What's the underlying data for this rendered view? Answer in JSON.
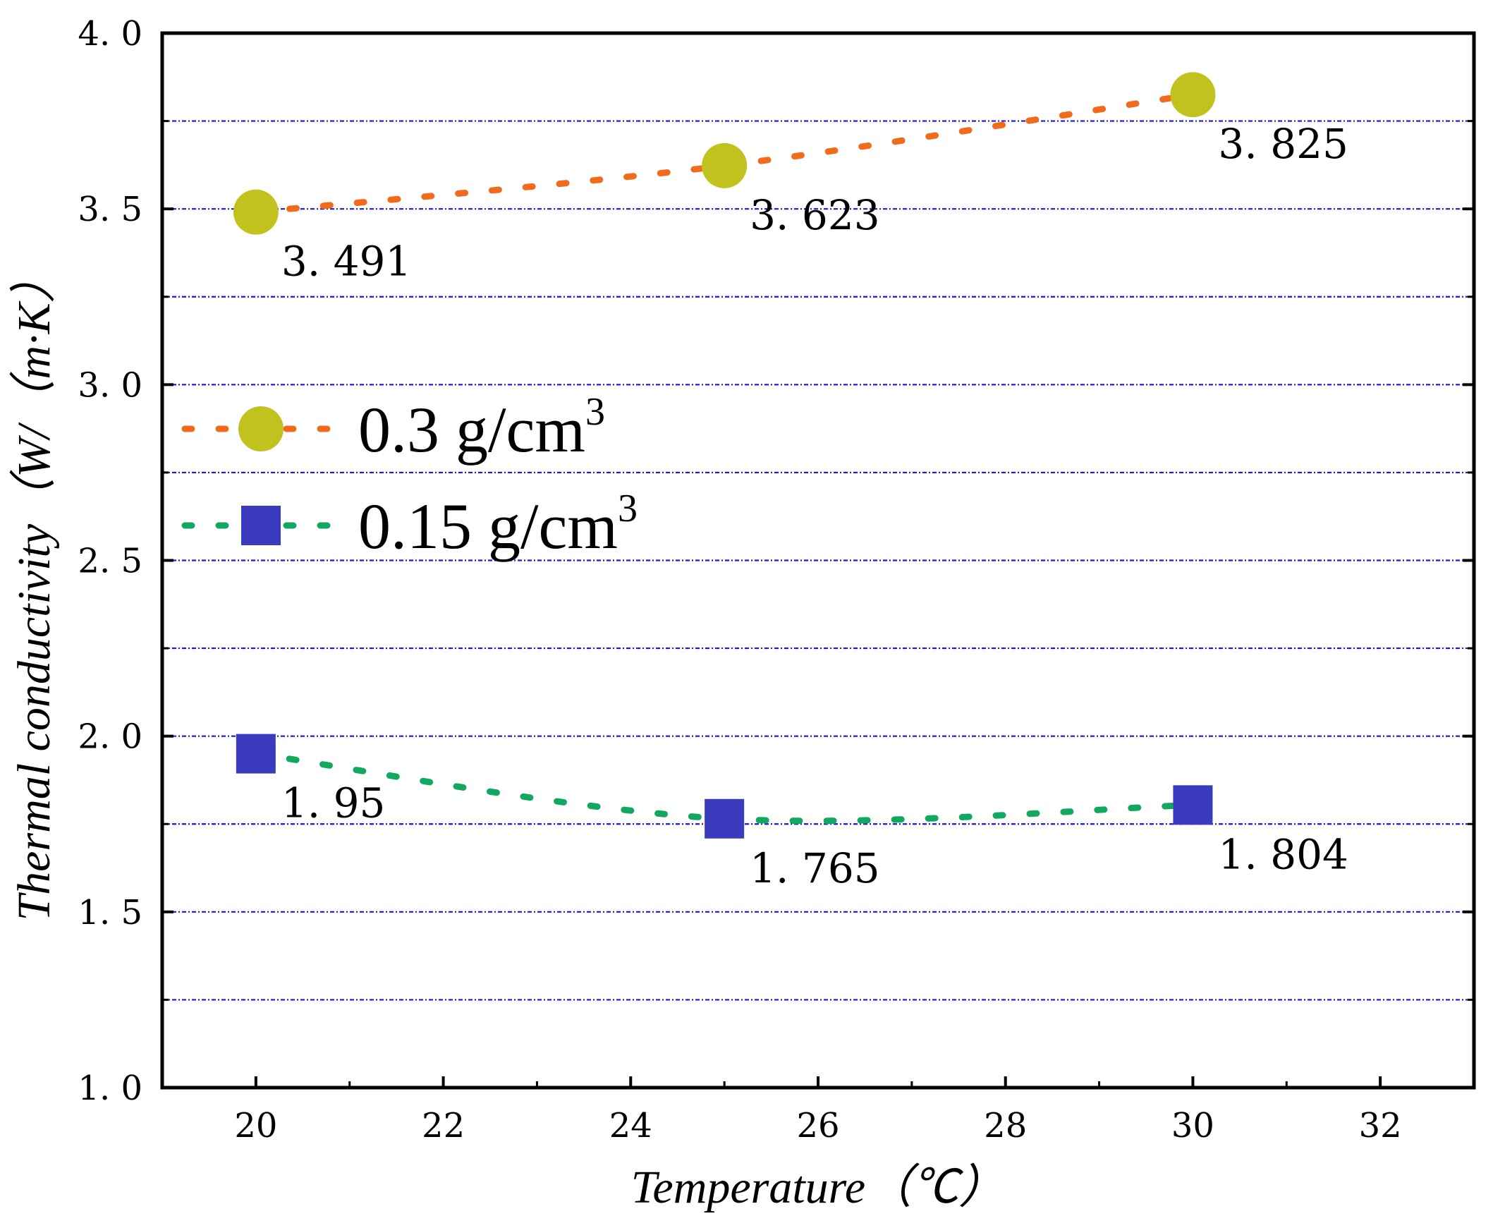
{
  "chart_data": {
    "type": "line",
    "title": "",
    "xlabel": "Temperature（℃）",
    "ylabel": "Thermal conductivity（W/（m·K）",
    "xlim": [
      19,
      33
    ],
    "ylim": [
      1.0,
      4.0
    ],
    "xticks": [
      20,
      22,
      24,
      26,
      28,
      30,
      32
    ],
    "xtick_labels": [
      "20",
      "22",
      "24",
      "26",
      "28",
      "30",
      "32"
    ],
    "yticks": [
      1.0,
      1.5,
      2.0,
      2.5,
      3.0,
      3.5,
      4.0
    ],
    "ytick_labels": [
      "1. 0",
      "1. 5",
      "2. 0",
      "2. 5",
      "3. 0",
      "3. 5",
      "4. 0"
    ],
    "minor_gridlines_y": [
      1.25,
      1.75,
      2.25,
      2.75,
      3.25,
      3.75
    ],
    "grid": "horizontal dotted",
    "legend_position": "middle-left",
    "x": [
      20,
      25,
      30
    ],
    "series": [
      {
        "name": "0.3 g/cm",
        "name_sup": "3",
        "values": [
          3.491,
          3.623,
          3.825
        ],
        "labels": [
          "3. 491",
          "3. 623",
          "3. 825"
        ],
        "marker": "circle",
        "marker_color": "#c2c21f",
        "line_color": "#f26b1d",
        "line_style": "dotted smooth"
      },
      {
        "name": "0.15 g/cm",
        "name_sup": "3",
        "values": [
          1.95,
          1.765,
          1.804
        ],
        "labels": [
          "1. 95",
          "1. 765",
          "1. 804"
        ],
        "marker": "square",
        "marker_color": "#3b3bc0",
        "line_color": "#13a860",
        "line_style": "dotted smooth"
      }
    ]
  }
}
